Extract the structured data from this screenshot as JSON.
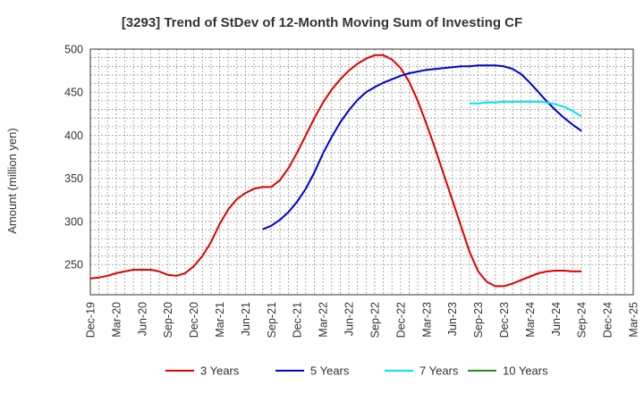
{
  "chart_data": {
    "type": "line",
    "title": "[3293]  Trend of StDev of 12-Month Moving Sum of Investing CF",
    "ylabel": "Amount (million yen)",
    "xlabel": "",
    "ylim": [
      215,
      500
    ],
    "yticks": [
      250,
      300,
      350,
      400,
      450,
      500
    ],
    "x_start": "Dec-19",
    "x_end": "Mar-25",
    "xticks": [
      "Dec-19",
      "Mar-20",
      "Jun-20",
      "Sep-20",
      "Dec-20",
      "Mar-21",
      "Jun-21",
      "Sep-21",
      "Dec-21",
      "Mar-22",
      "Jun-22",
      "Sep-22",
      "Dec-22",
      "Mar-23",
      "Jun-23",
      "Sep-23",
      "Dec-23",
      "Mar-24",
      "Jun-24",
      "Sep-24",
      "Dec-24",
      "Mar-25"
    ],
    "grid": true,
    "legend_position": "bottom",
    "series": [
      {
        "name": "3 Years",
        "color": "#e00000",
        "x": [
          "Dec-19",
          "Jan-20",
          "Feb-20",
          "Mar-20",
          "Apr-20",
          "May-20",
          "Jun-20",
          "Jul-20",
          "Aug-20",
          "Sep-20",
          "Oct-20",
          "Nov-20",
          "Dec-20",
          "Jan-21",
          "Feb-21",
          "Mar-21",
          "Apr-21",
          "May-21",
          "Jun-21",
          "Jul-21",
          "Aug-21",
          "Sep-21",
          "Oct-21",
          "Nov-21",
          "Dec-21",
          "Jan-22",
          "Feb-22",
          "Mar-22",
          "Apr-22",
          "May-22",
          "Jun-22",
          "Jul-22",
          "Aug-22",
          "Sep-22",
          "Oct-22",
          "Nov-22",
          "Dec-22",
          "Jan-23",
          "Feb-23",
          "Mar-23",
          "Apr-23",
          "May-23",
          "Jun-23",
          "Jul-23",
          "Aug-23",
          "Sep-23",
          "Oct-23",
          "Nov-23",
          "Dec-23",
          "Jan-24",
          "Feb-24",
          "Mar-24",
          "Apr-24",
          "May-24",
          "Jun-24",
          "Jul-24",
          "Aug-24",
          "Sep-24"
        ],
        "values": [
          234,
          235,
          237,
          240,
          242,
          244,
          244,
          244,
          242,
          238,
          237,
          240,
          248,
          260,
          276,
          297,
          314,
          326,
          333,
          338,
          340,
          340,
          348,
          362,
          380,
          400,
          420,
          438,
          453,
          465,
          475,
          483,
          489,
          493,
          493,
          488,
          478,
          462,
          440,
          413,
          385,
          355,
          325,
          295,
          265,
          242,
          230,
          225,
          225,
          228,
          232,
          236,
          240,
          242,
          243,
          243,
          242,
          242
        ]
      },
      {
        "name": "5 Years",
        "color": "#0000cc",
        "x": [
          "Aug-21",
          "Sep-21",
          "Oct-21",
          "Nov-21",
          "Dec-21",
          "Jan-22",
          "Feb-22",
          "Mar-22",
          "Apr-22",
          "May-22",
          "Jun-22",
          "Jul-22",
          "Aug-22",
          "Sep-22",
          "Oct-22",
          "Nov-22",
          "Dec-22",
          "Jan-23",
          "Feb-23",
          "Mar-23",
          "Apr-23",
          "May-23",
          "Jun-23",
          "Jul-23",
          "Aug-23",
          "Sep-23",
          "Oct-23",
          "Nov-23",
          "Dec-23",
          "Jan-24",
          "Feb-24",
          "Mar-24",
          "Apr-24",
          "May-24",
          "Jun-24",
          "Jul-24",
          "Aug-24",
          "Sep-24"
        ],
        "values": [
          291,
          295,
          302,
          311,
          323,
          338,
          357,
          379,
          398,
          415,
          429,
          441,
          450,
          456,
          461,
          465,
          469,
          472,
          474,
          476,
          477,
          478,
          479,
          480,
          480,
          481,
          481,
          481,
          480,
          477,
          471,
          461,
          450,
          439,
          429,
          420,
          412,
          405
        ]
      },
      {
        "name": "7 Years",
        "color": "#00e5ee",
        "x": [
          "Aug-23",
          "Sep-23",
          "Oct-23",
          "Nov-23",
          "Dec-23",
          "Jan-24",
          "Feb-24",
          "Mar-24",
          "Apr-24",
          "May-24",
          "Jun-24",
          "Jul-24",
          "Aug-24",
          "Sep-24"
        ],
        "values": [
          437,
          437,
          438,
          438,
          439,
          439,
          439,
          439,
          439,
          438,
          436,
          433,
          428,
          422
        ]
      },
      {
        "name": "10 Years",
        "color": "#228b22",
        "x": [],
        "values": []
      }
    ]
  }
}
